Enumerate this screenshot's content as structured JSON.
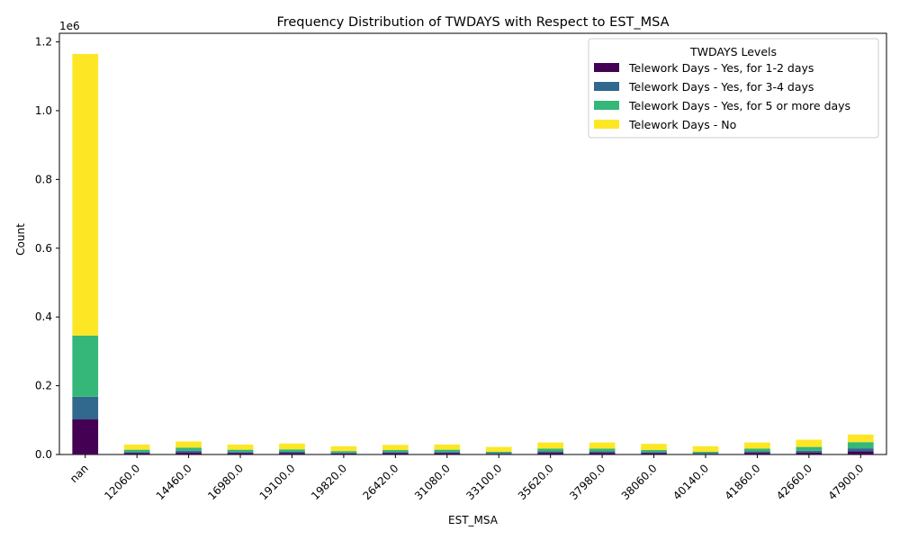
{
  "chart_data": {
    "type": "bar",
    "stacked": true,
    "title": "Frequency Distribution of TWDAYS with Respect to EST_MSA",
    "xlabel": "EST_MSA",
    "ylabel": "Count",
    "y_multiplier_label": "1e6",
    "ylim": [
      0,
      1.225
    ],
    "y_ticks": [
      "0.0",
      "0.2",
      "0.4",
      "0.6",
      "0.8",
      "1.0",
      "1.2"
    ],
    "y_tick_values": [
      0.0,
      0.2,
      0.4,
      0.6,
      0.8,
      1.0,
      1.2
    ],
    "categories": [
      "nan",
      "12060.0",
      "14460.0",
      "16980.0",
      "19100.0",
      "19820.0",
      "26420.0",
      "31080.0",
      "33100.0",
      "35620.0",
      "37980.0",
      "38060.0",
      "40140.0",
      "41860.0",
      "42660.0",
      "47900.0"
    ],
    "legend_title": "TWDAYS Levels",
    "legend_position": "top-right",
    "grid": false,
    "series": [
      {
        "name": "Telework Days - Yes, for 1-2 days",
        "color": "#440154",
        "values": [
          0.102,
          0.004,
          0.006,
          0.004,
          0.004,
          0.003,
          0.004,
          0.004,
          0.002,
          0.005,
          0.005,
          0.004,
          0.002,
          0.005,
          0.006,
          0.009
        ]
      },
      {
        "name": "Telework Days - Yes, for 3-4 days",
        "color": "#31688e",
        "values": [
          0.066,
          0.003,
          0.005,
          0.003,
          0.004,
          0.002,
          0.003,
          0.003,
          0.002,
          0.004,
          0.004,
          0.003,
          0.002,
          0.004,
          0.005,
          0.009
        ]
      },
      {
        "name": "Telework Days - Yes, for 5 or more days",
        "color": "#35b779",
        "values": [
          0.178,
          0.007,
          0.009,
          0.007,
          0.007,
          0.005,
          0.006,
          0.007,
          0.004,
          0.008,
          0.008,
          0.006,
          0.004,
          0.008,
          0.011,
          0.018
        ]
      },
      {
        "name": "Telework Days - No",
        "color": "#fde725",
        "values": [
          0.819,
          0.015,
          0.018,
          0.015,
          0.017,
          0.014,
          0.015,
          0.015,
          0.014,
          0.018,
          0.018,
          0.018,
          0.016,
          0.018,
          0.021,
          0.022
        ]
      }
    ]
  }
}
